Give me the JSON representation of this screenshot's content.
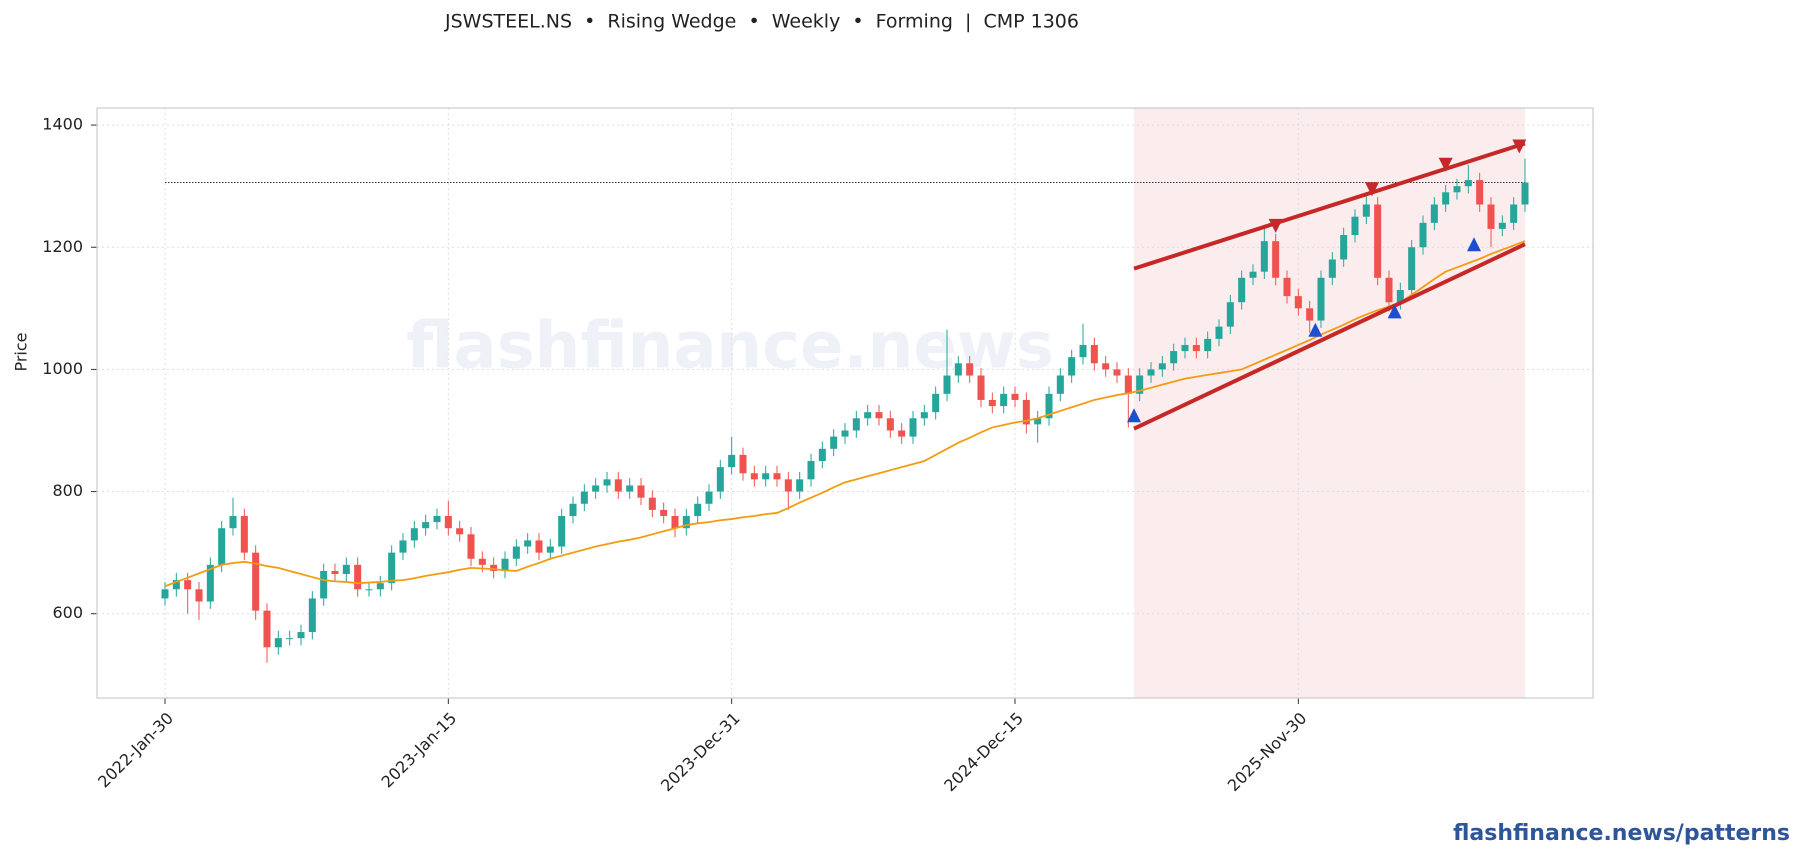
{
  "chart_data": {
    "type": "candlestick",
    "title": "JSWSTEEL.NS  •  Rising Wedge  •  Weekly  •  Forming  |  CMP 1306",
    "y_label": "Price",
    "watermark": "flashfinance.news",
    "footer": "flashfinance.news/patterns",
    "categories": [
      "2022-Jan-30",
      null,
      null,
      null,
      null,
      null,
      null,
      null,
      null,
      null,
      null,
      null,
      null,
      null,
      null,
      null,
      null,
      null,
      null,
      null,
      null,
      null,
      null,
      null,
      null,
      "2023-Jan-15",
      null,
      null,
      null,
      null,
      null,
      null,
      null,
      null,
      null,
      null,
      null,
      null,
      null,
      null,
      null,
      null,
      null,
      null,
      null,
      null,
      null,
      null,
      null,
      null,
      "2023-Dec-31",
      null,
      null,
      null,
      null,
      null,
      null,
      null,
      null,
      null,
      null,
      null,
      null,
      null,
      null,
      null,
      null,
      null,
      null,
      null,
      null,
      null,
      null,
      null,
      null,
      "2024-Dec-15",
      null,
      null,
      null,
      null,
      null,
      null,
      null,
      null,
      null,
      null,
      null,
      null,
      null,
      null,
      null,
      null,
      null,
      null,
      null,
      null,
      null,
      null,
      null,
      null,
      "2025-Nov-30",
      null,
      null,
      null,
      null,
      null,
      null,
      null,
      null,
      null,
      null,
      null,
      null,
      null,
      null,
      null,
      null,
      null,
      null,
      null,
      null
    ],
    "open": [
      625,
      640,
      655,
      640,
      620,
      680,
      740,
      760,
      700,
      605,
      545,
      560,
      560,
      570,
      625,
      670,
      665,
      680,
      640,
      640,
      650,
      700,
      720,
      740,
      750,
      760,
      740,
      730,
      690,
      680,
      670,
      690,
      710,
      720,
      700,
      710,
      760,
      780,
      800,
      810,
      820,
      800,
      810,
      790,
      770,
      760,
      740,
      760,
      780,
      800,
      840,
      860,
      830,
      820,
      830,
      820,
      800,
      820,
      850,
      870,
      890,
      900,
      920,
      930,
      920,
      900,
      890,
      920,
      930,
      960,
      990,
      1010,
      990,
      950,
      940,
      960,
      950,
      910,
      920,
      960,
      990,
      1020,
      1040,
      1010,
      1000,
      990,
      960,
      990,
      1000,
      1010,
      1030,
      1040,
      1030,
      1050,
      1070,
      1110,
      1150,
      1160,
      1210,
      1150,
      1120,
      1100,
      1080,
      1150,
      1180,
      1220,
      1250,
      1270,
      1150,
      1110,
      1130,
      1200,
      1240,
      1270,
      1290,
      1300,
      1310,
      1270,
      1230,
      1240,
      1270
    ],
    "high": [
      652,
      667,
      667,
      652,
      692,
      752,
      790,
      772,
      712,
      617,
      572,
      572,
      582,
      637,
      682,
      682,
      692,
      692,
      652,
      662,
      712,
      732,
      752,
      762,
      772,
      785,
      752,
      742,
      702,
      692,
      702,
      722,
      732,
      732,
      722,
      772,
      792,
      812,
      822,
      832,
      832,
      822,
      822,
      802,
      782,
      772,
      772,
      792,
      812,
      852,
      890,
      872,
      842,
      842,
      842,
      832,
      832,
      862,
      882,
      902,
      912,
      932,
      942,
      942,
      932,
      912,
      932,
      942,
      972,
      1065,
      1022,
      1022,
      1002,
      962,
      972,
      972,
      962,
      932,
      972,
      1002,
      1032,
      1075,
      1052,
      1022,
      1012,
      1002,
      1002,
      1012,
      1022,
      1042,
      1052,
      1052,
      1062,
      1082,
      1122,
      1162,
      1172,
      1235,
      1222,
      1162,
      1132,
      1112,
      1162,
      1192,
      1232,
      1262,
      1290,
      1282,
      1162,
      1142,
      1212,
      1252,
      1282,
      1302,
      1312,
      1335,
      1322,
      1282,
      1252,
      1282,
      1345
    ],
    "low": [
      613,
      628,
      600,
      590,
      608,
      668,
      728,
      688,
      590,
      520,
      533,
      548,
      548,
      558,
      613,
      653,
      653,
      628,
      628,
      628,
      638,
      688,
      708,
      728,
      738,
      728,
      718,
      678,
      668,
      658,
      658,
      678,
      698,
      688,
      688,
      698,
      748,
      768,
      788,
      798,
      788,
      788,
      778,
      758,
      748,
      725,
      728,
      748,
      768,
      788,
      828,
      818,
      808,
      808,
      808,
      770,
      788,
      808,
      838,
      858,
      878,
      888,
      908,
      908,
      888,
      878,
      878,
      908,
      918,
      948,
      978,
      978,
      938,
      928,
      928,
      938,
      895,
      880,
      908,
      948,
      978,
      1008,
      998,
      988,
      978,
      905,
      948,
      978,
      988,
      998,
      1018,
      1018,
      1018,
      1038,
      1058,
      1098,
      1138,
      1148,
      1138,
      1108,
      1088,
      1060,
      1068,
      1138,
      1168,
      1208,
      1238,
      1138,
      1095,
      1098,
      1118,
      1188,
      1228,
      1258,
      1278,
      1288,
      1258,
      1200,
      1218,
      1228,
      1258
    ],
    "close": [
      640,
      655,
      640,
      620,
      680,
      740,
      760,
      700,
      605,
      545,
      560,
      560,
      570,
      625,
      670,
      665,
      680,
      640,
      640,
      650,
      700,
      720,
      740,
      750,
      760,
      740,
      730,
      690,
      680,
      670,
      690,
      710,
      720,
      700,
      710,
      760,
      780,
      800,
      810,
      820,
      800,
      810,
      790,
      770,
      760,
      740,
      760,
      780,
      800,
      840,
      860,
      830,
      820,
      830,
      820,
      800,
      820,
      850,
      870,
      890,
      900,
      920,
      930,
      920,
      900,
      890,
      920,
      930,
      960,
      990,
      1010,
      990,
      950,
      940,
      960,
      950,
      910,
      920,
      960,
      990,
      1020,
      1040,
      1010,
      1000,
      990,
      960,
      990,
      1000,
      1010,
      1030,
      1040,
      1030,
      1050,
      1070,
      1110,
      1150,
      1160,
      1210,
      1150,
      1120,
      1100,
      1080,
      1150,
      1180,
      1220,
      1250,
      1270,
      1150,
      1110,
      1130,
      1200,
      1240,
      1270,
      1290,
      1300,
      1310,
      1270,
      1230,
      1240,
      1270,
      1306
    ],
    "up_color": "#26a69a",
    "down_color": "#ef5350",
    "moving_average": {
      "color": "#f39c12",
      "values": [
        645,
        652,
        659,
        666,
        673,
        680,
        683,
        685,
        682,
        678,
        675,
        670,
        665,
        660,
        655,
        653,
        652,
        650,
        651,
        652,
        654,
        655,
        658,
        662,
        665,
        668,
        672,
        675,
        674,
        673,
        671,
        670,
        677,
        683,
        690,
        695,
        700,
        705,
        710,
        714,
        718,
        721,
        725,
        730,
        735,
        740,
        745,
        748,
        750,
        753,
        755,
        758,
        760,
        763,
        765,
        773,
        782,
        790,
        798,
        807,
        815,
        820,
        825,
        830,
        835,
        840,
        845,
        850,
        860,
        870,
        880,
        888,
        897,
        905,
        909,
        913,
        916,
        920,
        926,
        932,
        938,
        944,
        950,
        954,
        958,
        961,
        965,
        970,
        975,
        980,
        985,
        988,
        991,
        994,
        997,
        1000,
        1008,
        1016,
        1024,
        1032,
        1040,
        1048,
        1057,
        1065,
        1073,
        1082,
        1090,
        1097,
        1103,
        1110,
        1122,
        1135,
        1148,
        1160,
        1167,
        1174,
        1181,
        1189,
        1196,
        1203,
        1210
      ]
    },
    "cmp_line": 1306,
    "pattern_zone": {
      "color": "#f8e1e1",
      "x": [
        85.5,
        120
      ]
    },
    "trendlines": [
      {
        "color": "#c62828",
        "x": [
          85.5,
          120
        ],
        "y": [
          1165,
          1370
        ]
      },
      {
        "color": "#c62828",
        "x": [
          85.5,
          120
        ],
        "y": [
          903,
          1205
        ]
      }
    ],
    "peaks": {
      "color": "#c62828",
      "x": [
        98,
        106.5,
        113,
        119.5
      ],
      "y": [
        1235,
        1295,
        1335,
        1365
      ]
    },
    "troughs": {
      "color": "#1f4fd1",
      "x": [
        85.5,
        101.5,
        108.5,
        115.5
      ],
      "y": [
        925,
        1065,
        1095,
        1205
      ]
    },
    "ylim": [
      462,
      1428
    ],
    "yticks": [
      600,
      800,
      1000,
      1200,
      1400
    ],
    "grid": true
  }
}
